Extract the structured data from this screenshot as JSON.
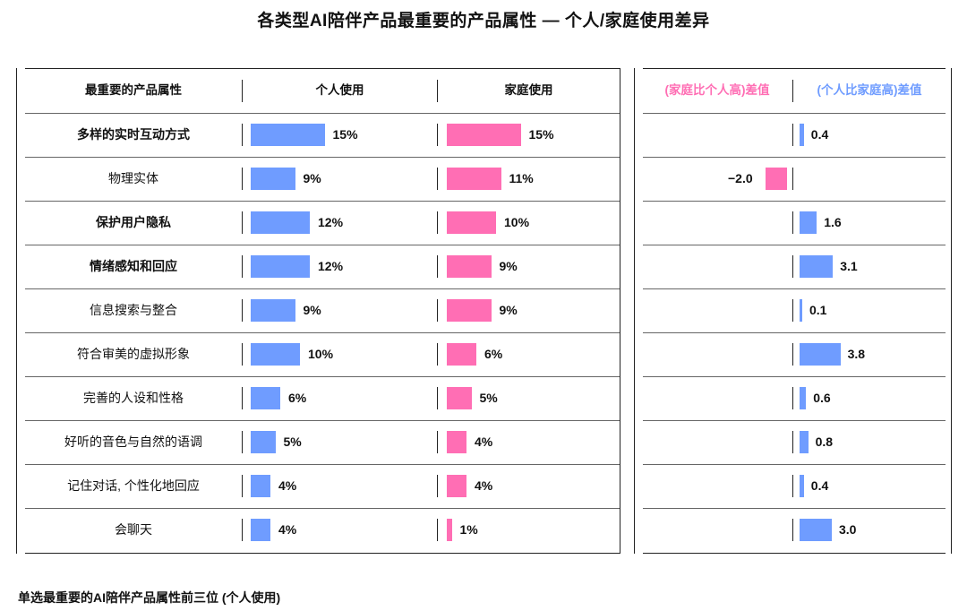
{
  "title": "各类型AI陪伴产品最重要的产品属性 — 个人/家庭使用差异",
  "footnote": "单选最重要的AI陪伴产品属性前三位 (个人使用)",
  "headers": {
    "attribute": "最重要的产品属性",
    "personal": "个人使用",
    "household": "家庭使用",
    "household_higher": "(家庭比个人高)差值",
    "personal_higher": "(个人比家庭高)差值"
  },
  "colors": {
    "personal": "#6f9cff",
    "household": "#ff6eb4"
  },
  "chart_data": {
    "type": "bar",
    "title": "各类型AI陪伴产品最重要的产品属性 — 个人/家庭使用差异",
    "categories": [
      "多样的实时互动方式",
      "物理实体",
      "保护用户隐私",
      "情绪感知和回应",
      "信息搜索与整合",
      "符合审美的虚拟形象",
      "完善的人设和性格",
      "好听的音色与自然的语调",
      "记住对话, 个性化地回应",
      "会聊天"
    ],
    "bold_categories": [
      0,
      2,
      3
    ],
    "series": [
      {
        "name": "个人使用",
        "unit": "%",
        "values": [
          15,
          9,
          12,
          12,
          9,
          10,
          6,
          5,
          4,
          4
        ],
        "labels": [
          "15%",
          "9%",
          "12%",
          "12%",
          "9%",
          "10%",
          "6%",
          "5%",
          "4%",
          "4%"
        ]
      },
      {
        "name": "家庭使用",
        "unit": "%",
        "values": [
          15,
          11,
          10,
          9,
          9,
          6,
          5,
          4,
          4,
          1
        ],
        "labels": [
          "15%",
          "11%",
          "10%",
          "9%",
          "9%",
          "6%",
          "5%",
          "4%",
          "4%",
          "1%"
        ]
      }
    ],
    "difference": {
      "name": "差值",
      "values": [
        0.4,
        -2.0,
        1.6,
        3.1,
        0.1,
        3.8,
        0.6,
        0.8,
        0.4,
        3.0
      ],
      "labels": [
        "0.4",
        "-2.0",
        "1.6",
        "3.1",
        "0.1",
        "3.8",
        "0.6",
        "0.8",
        "0.4",
        "3.0"
      ]
    }
  }
}
